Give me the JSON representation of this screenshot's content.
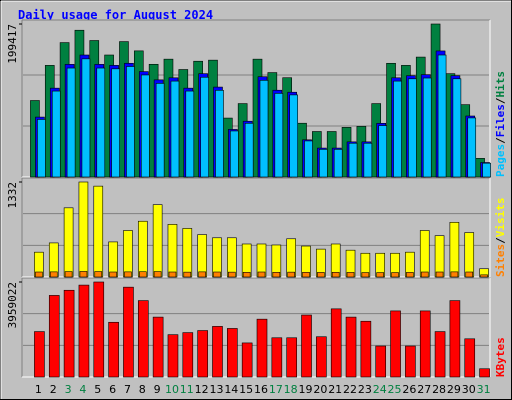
{
  "chart_data": [
    {
      "type": "bar",
      "title": "Daily usage for August 2024",
      "categories": [
        "1",
        "2",
        "3",
        "4",
        "5",
        "6",
        "7",
        "8",
        "9",
        "10",
        "11",
        "12",
        "13",
        "14",
        "15",
        "16",
        "17",
        "18",
        "19",
        "20",
        "21",
        "22",
        "23",
        "24",
        "25",
        "26",
        "27",
        "28",
        "29",
        "30",
        "31"
      ],
      "category_colors": [
        "#000000",
        "#000000",
        "#008040",
        "#008040",
        "#000000",
        "#000000",
        "#000000",
        "#000000",
        "#000000",
        "#008040",
        "#008040",
        "#000000",
        "#000000",
        "#000000",
        "#000000",
        "#000000",
        "#008040",
        "#008040",
        "#000000",
        "#000000",
        "#000000",
        "#000000",
        "#000000",
        "#008040",
        "#008040",
        "#000000",
        "#000000",
        "#000000",
        "#000000",
        "#000000",
        "#008040"
      ],
      "legend_separator": "/",
      "series": [
        {
          "name": "Hits",
          "color": "#008040",
          "values": [
            99700,
            145500,
            175200,
            191300,
            177900,
            159000,
            176500,
            164400,
            146900,
            153600,
            140100,
            150900,
            152300,
            76800,
            95700,
            153600,
            136100,
            129400,
            70100,
            59300,
            59300,
            64700,
            66000,
            95700,
            148200,
            145500,
            156300,
            199417,
            134700,
            94300,
            24300
          ]
        },
        {
          "name": "Files",
          "color": "#0000ff",
          "values": [
            78100,
            115800,
            146800,
            159000,
            146800,
            145500,
            148200,
            137400,
            126600,
            129300,
            115800,
            134700,
            117200,
            62000,
            72700,
            130700,
            113100,
            110500,
            48500,
            37700,
            37700,
            45800,
            45800,
            70000,
            129300,
            132000,
            133400,
            164300,
            132000,
            79500,
            18900
          ]
        },
        {
          "name": "Pages",
          "color": "#00c0ff",
          "values": [
            75000,
            112000,
            142000,
            154000,
            142000,
            141000,
            144000,
            133000,
            122000,
            125000,
            112000,
            130000,
            113000,
            60000,
            70000,
            126000,
            109000,
            107000,
            47000,
            36000,
            36000,
            44000,
            44000,
            67000,
            125000,
            128000,
            129000,
            159000,
            128000,
            77000,
            18000
          ]
        }
      ],
      "ylim": [
        0,
        199417
      ],
      "yticks": [
        199417
      ]
    },
    {
      "type": "bar",
      "legend_separator": "/",
      "series": [
        {
          "name": "Visits",
          "color": "#ffff00",
          "values": [
            348,
            478,
            970,
            1332,
            1274,
            492,
            652,
            782,
            1014,
            738,
            681,
            594,
            550,
            550,
            463,
            463,
            449,
            536,
            434,
            391,
            463,
            376,
            333,
            333,
            333,
            348,
            652,
            579,
            767,
            623,
            116
          ]
        },
        {
          "name": "Sites",
          "color": "#ff8000",
          "values": [
            70,
            72,
            75,
            78,
            76,
            70,
            72,
            74,
            76,
            70,
            68,
            72,
            70,
            68,
            66,
            70,
            66,
            68,
            66,
            64,
            66,
            64,
            62,
            62,
            62,
            64,
            70,
            70,
            72,
            70,
            30
          ]
        }
      ],
      "ylim": [
        0,
        1332
      ],
      "yticks": [
        1332
      ]
    },
    {
      "type": "bar",
      "series": [
        {
          "name": "KBytes",
          "color": "#ff0000",
          "values": [
            1893000,
            3400000,
            3615000,
            3830000,
            3959022,
            2281000,
            3744000,
            3184000,
            2496000,
            1764000,
            1850000,
            1936000,
            2109000,
            2023000,
            1420000,
            2410000,
            1635000,
            1635000,
            2582000,
            1678000,
            2840000,
            2496000,
            2324000,
            1291000,
            2754000,
            1291000,
            2754000,
            1893000,
            3184000,
            1592000,
            344000
          ]
        }
      ],
      "ylim": [
        0,
        3959022
      ],
      "yticks": [
        3959022
      ]
    }
  ]
}
